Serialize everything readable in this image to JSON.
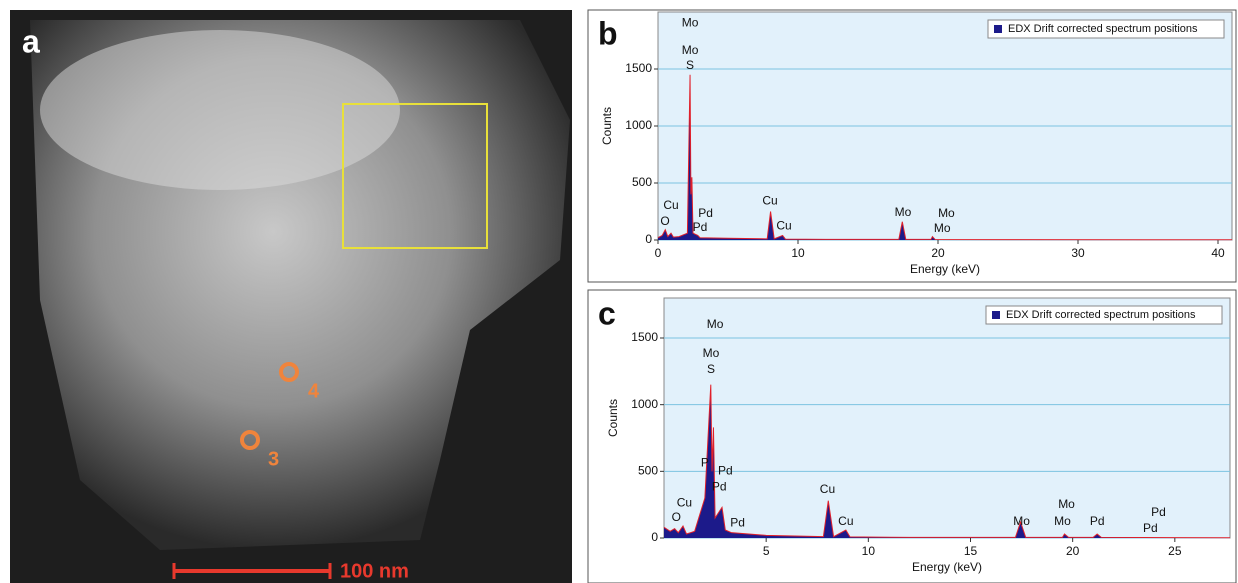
{
  "image_panel": {
    "panel_label": "a",
    "scale_bar": "100 nm",
    "markers": [
      "4",
      "3"
    ]
  },
  "chart_data": [
    {
      "type": "area",
      "panel_label": "b",
      "x_label": "Energy (keV)",
      "y_label": "Counts",
      "xlim": [
        0,
        41
      ],
      "ylim": [
        0,
        2000
      ],
      "xticks": [
        0,
        10,
        20,
        30,
        40
      ],
      "yticks": [
        0,
        500,
        1000,
        1500
      ],
      "grid": true,
      "legend": "top-right",
      "x": [
        0,
        0.3,
        0.52,
        0.7,
        0.93,
        1.1,
        1.5,
        2.1,
        2.29,
        2.35,
        2.42,
        2.5,
        2.84,
        3.0,
        5,
        7.8,
        8.04,
        8.3,
        8.9,
        9.1,
        12,
        17.2,
        17.45,
        17.7,
        19.5,
        19.6,
        19.8,
        25,
        41
      ],
      "series": [
        {
          "name": "EDX Drift corrected spectrum positions",
          "color": "#1c1a8a",
          "values": [
            20,
            40,
            90,
            30,
            60,
            25,
            30,
            60,
            1450,
            400,
            550,
            60,
            40,
            20,
            15,
            10,
            250,
            10,
            40,
            8,
            5,
            5,
            160,
            5,
            5,
            30,
            4,
            3,
            2
          ]
        }
      ],
      "annotations": [
        {
          "text": "Mo",
          "x": 2.29,
          "y": 1900
        },
        {
          "text": "Mo",
          "x": 2.29,
          "y": 1660
        },
        {
          "text": "S",
          "x": 2.29,
          "y": 1530
        },
        {
          "text": "Cu",
          "x": 0.93,
          "y": 300
        },
        {
          "text": "O",
          "x": 0.5,
          "y": 160
        },
        {
          "text": "Pd",
          "x": 3.4,
          "y": 230
        },
        {
          "text": "Pd",
          "x": 3.0,
          "y": 105
        },
        {
          "text": "Cu",
          "x": 8.0,
          "y": 340
        },
        {
          "text": "Cu",
          "x": 9.0,
          "y": 120
        },
        {
          "text": "Mo",
          "x": 17.5,
          "y": 240
        },
        {
          "text": "Mo",
          "x": 20.6,
          "y": 230
        },
        {
          "text": "Mo",
          "x": 20.3,
          "y": 100
        }
      ]
    },
    {
      "type": "area",
      "panel_label": "c",
      "x_label": "Energy (keV)",
      "y_label": "Counts",
      "xlim": [
        0,
        27.7
      ],
      "ylim": [
        0,
        1800
      ],
      "xticks": [
        5,
        10,
        15,
        20,
        25
      ],
      "yticks": [
        0,
        500,
        1000,
        1500
      ],
      "grid": true,
      "legend": "top-right",
      "x": [
        0,
        0.3,
        0.52,
        0.7,
        0.93,
        1.1,
        1.5,
        2.0,
        2.29,
        2.35,
        2.42,
        2.5,
        2.84,
        3.0,
        3.3,
        5,
        7.8,
        8.04,
        8.3,
        8.9,
        9.1,
        12,
        17.2,
        17.45,
        17.7,
        19.5,
        19.6,
        19.8,
        21.0,
        21.2,
        21.4,
        25,
        27.7
      ],
      "series": [
        {
          "name": "EDX Drift corrected spectrum positions",
          "color": "#1c1a8a",
          "values": [
            80,
            50,
            70,
            40,
            90,
            30,
            50,
            300,
            1150,
            500,
            830,
            150,
            230,
            60,
            40,
            20,
            10,
            280,
            10,
            60,
            8,
            5,
            5,
            120,
            5,
            5,
            30,
            5,
            5,
            30,
            5,
            3,
            2
          ]
        }
      ],
      "annotations": [
        {
          "text": "Mo",
          "x": 2.5,
          "y": 1600
        },
        {
          "text": "Mo",
          "x": 2.3,
          "y": 1380
        },
        {
          "text": "S",
          "x": 2.3,
          "y": 1260
        },
        {
          "text": "P",
          "x": 2.0,
          "y": 560
        },
        {
          "text": "Pd",
          "x": 3.0,
          "y": 500
        },
        {
          "text": "Pd",
          "x": 2.7,
          "y": 380
        },
        {
          "text": "Pd",
          "x": 3.6,
          "y": 110
        },
        {
          "text": "Cu",
          "x": 1.0,
          "y": 260
        },
        {
          "text": "O",
          "x": 0.6,
          "y": 150
        },
        {
          "text": "Cu",
          "x": 8.0,
          "y": 360
        },
        {
          "text": "Cu",
          "x": 8.9,
          "y": 120
        },
        {
          "text": "Mo",
          "x": 17.5,
          "y": 120
        },
        {
          "text": "Mo",
          "x": 19.7,
          "y": 250
        },
        {
          "text": "Mo",
          "x": 19.5,
          "y": 120
        },
        {
          "text": "Pd",
          "x": 21.2,
          "y": 120
        },
        {
          "text": "Pd",
          "x": 24.2,
          "y": 190
        },
        {
          "text": "Pd",
          "x": 23.8,
          "y": 70
        }
      ]
    }
  ]
}
